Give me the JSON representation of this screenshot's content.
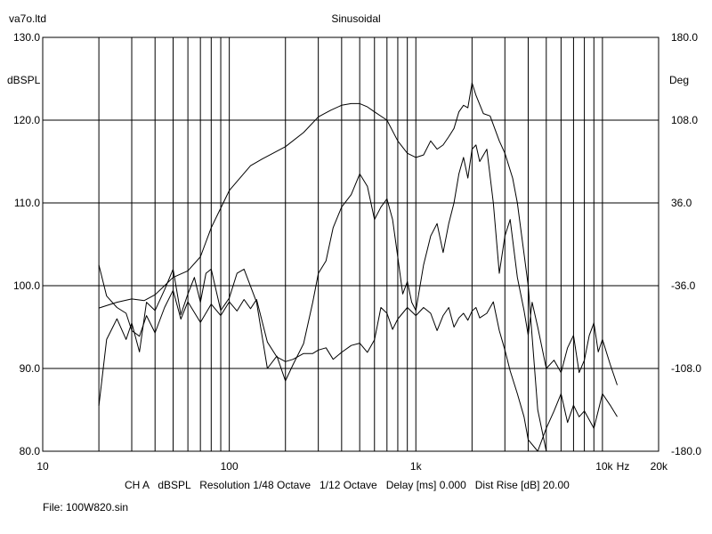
{
  "header": {
    "left": "va7o.ltd",
    "center": "Sinusoidal"
  },
  "footer": {
    "line1": "CH A   dBSPL   Resolution 1/48 Octave   1/12 Octave   Delay [ms] 0.000   Dist Rise [dB] 20.00",
    "file": "File: 100W820.sin"
  },
  "chart_data": {
    "type": "line",
    "title": "Sinusoidal",
    "x_scale": "log",
    "xlim": [
      10,
      20000
    ],
    "x_unit": "Hz",
    "x_ticks": [
      {
        "value": 10,
        "label": "10"
      },
      {
        "value": 100,
        "label": "100"
      },
      {
        "value": 1000,
        "label": "1k"
      },
      {
        "value": 10000,
        "label": "10k"
      },
      {
        "value": 20000,
        "label": "20k"
      }
    ],
    "y_left": {
      "label": "dBSPL",
      "lim": [
        80,
        130
      ],
      "ticks": [
        {
          "value": 80,
          "label": "80.0"
        },
        {
          "value": 90,
          "label": "90.0"
        },
        {
          "value": 100,
          "label": "100.0"
        },
        {
          "value": 110,
          "label": "110.0"
        },
        {
          "value": 120,
          "label": "120.0"
        },
        {
          "value": 130,
          "label": "130.0"
        }
      ]
    },
    "y_right": {
      "label": "Deg",
      "lim": [
        -180,
        180
      ],
      "ticks": [
        {
          "value": -180,
          "label": "-180.0"
        },
        {
          "value": -108,
          "label": "-108.0"
        },
        {
          "value": -36,
          "label": "-36.0"
        },
        {
          "value": 36,
          "label": "36.0"
        },
        {
          "value": 108,
          "label": "108.0"
        },
        {
          "value": 180,
          "label": "180.0"
        }
      ]
    },
    "grid": true,
    "series": [
      {
        "kind": "spl-smoothed",
        "color": "#000000",
        "x": [
          20,
          25,
          30,
          35,
          40,
          45,
          50,
          60,
          70,
          80,
          100,
          130,
          150,
          200,
          250,
          300,
          350,
          400,
          450,
          500,
          550,
          600,
          700,
          800,
          900,
          1000,
          1100,
          1200,
          1300,
          1400,
          1500,
          1600,
          1700,
          1800,
          1900,
          2000,
          2100,
          2300,
          2500,
          2800,
          3000,
          3300,
          3500,
          4000,
          4500,
          5000
        ],
        "y": [
          97.3,
          98.0,
          98.4,
          98.2,
          98.9,
          100.0,
          101.0,
          101.8,
          103.5,
          107.0,
          111.5,
          114.5,
          115.3,
          116.8,
          118.5,
          120.4,
          121.2,
          121.8,
          122.0,
          122.0,
          121.6,
          121.0,
          120.0,
          117.5,
          116.0,
          115.5,
          115.8,
          117.5,
          116.5,
          117.0,
          118.0,
          119.0,
          121.0,
          121.8,
          121.5,
          124.5,
          123.0,
          120.8,
          120.5,
          117.5,
          116.0,
          113.0,
          110.0,
          100.0,
          85.0,
          80.0
        ]
      },
      {
        "kind": "spl-raw",
        "color": "#000000",
        "x": [
          20,
          22,
          25,
          28,
          30,
          33,
          36,
          40,
          45,
          50,
          55,
          60,
          65,
          70,
          75,
          80,
          90,
          100,
          110,
          120,
          140,
          160,
          180,
          200,
          220,
          250,
          280,
          300,
          330,
          360,
          400,
          450,
          500,
          550,
          600,
          650,
          700,
          750,
          800,
          850,
          900,
          950,
          1000,
          1100,
          1200,
          1300,
          1400,
          1500,
          1600,
          1700,
          1800,
          1900,
          2000,
          2100,
          2200,
          2400,
          2600,
          2800,
          3000,
          3200,
          3500,
          3800,
          4000,
          4200,
          4500,
          5000,
          5500,
          6000,
          6500,
          7000,
          7500,
          8000,
          8500,
          9000,
          9500,
          10000,
          11000,
          12000
        ],
        "y": [
          85.5,
          93.5,
          96.0,
          93.5,
          95.5,
          92.0,
          98.0,
          97.0,
          99.5,
          102.0,
          96.5,
          99.0,
          101.0,
          98.0,
          101.5,
          102.0,
          97.0,
          98.5,
          101.5,
          102.0,
          98.0,
          90.0,
          91.5,
          88.5,
          90.5,
          93.0,
          98.0,
          101.5,
          103.0,
          107.0,
          109.5,
          111.0,
          113.5,
          112.0,
          108.0,
          109.5,
          110.5,
          108.0,
          103.5,
          99.0,
          100.5,
          98.0,
          97.0,
          102.5,
          106.0,
          107.5,
          104.0,
          107.5,
          110.0,
          113.5,
          115.5,
          113.0,
          116.5,
          117.0,
          115.0,
          116.5,
          110.0,
          101.5,
          106.0,
          108.0,
          101.0,
          97.0,
          94.0,
          98.0,
          95.0,
          90.0,
          91.0,
          89.5,
          92.5,
          94.0,
          89.5,
          91.0,
          94.0,
          95.5,
          92.0,
          93.5,
          90.5,
          88.0
        ]
      },
      {
        "kind": "phase",
        "color": "#000000",
        "axis": "right",
        "x": [
          20,
          22,
          25,
          28,
          30,
          33,
          36,
          40,
          45,
          50,
          55,
          60,
          70,
          80,
          90,
          100,
          110,
          120,
          130,
          140,
          160,
          180,
          200,
          220,
          250,
          280,
          300,
          330,
          360,
          400,
          450,
          500,
          550,
          600,
          650,
          700,
          750,
          800,
          900,
          1000,
          1100,
          1200,
          1300,
          1400,
          1500,
          1600,
          1700,
          1800,
          1900,
          2000,
          2100,
          2200,
          2400,
          2600,
          2800,
          3000,
          3200,
          3500,
          3800,
          4000,
          4500,
          5000,
          5500,
          6000,
          6500,
          7000,
          7500,
          8000,
          9000,
          10000,
          11000,
          12000
        ],
        "y": [
          -18,
          -45,
          -55,
          -60,
          -75,
          -80,
          -62,
          -77,
          -55,
          -40,
          -65,
          -50,
          -68,
          -52,
          -62,
          -50,
          -58,
          -48,
          -56,
          -48,
          -85,
          -98,
          -102,
          -100,
          -95,
          -95,
          -92,
          -90,
          -100,
          -94,
          -88,
          -86,
          -94,
          -83,
          -55,
          -60,
          -74,
          -65,
          -55,
          -62,
          -55,
          -60,
          -75,
          -62,
          -55,
          -72,
          -64,
          -60,
          -66,
          -58,
          -55,
          -64,
          -60,
          -50,
          -75,
          -92,
          -110,
          -130,
          -150,
          -170,
          -180,
          -160,
          -145,
          -130,
          -155,
          -140,
          -150,
          -145,
          -160,
          -130,
          -140,
          -150
        ]
      }
    ]
  }
}
